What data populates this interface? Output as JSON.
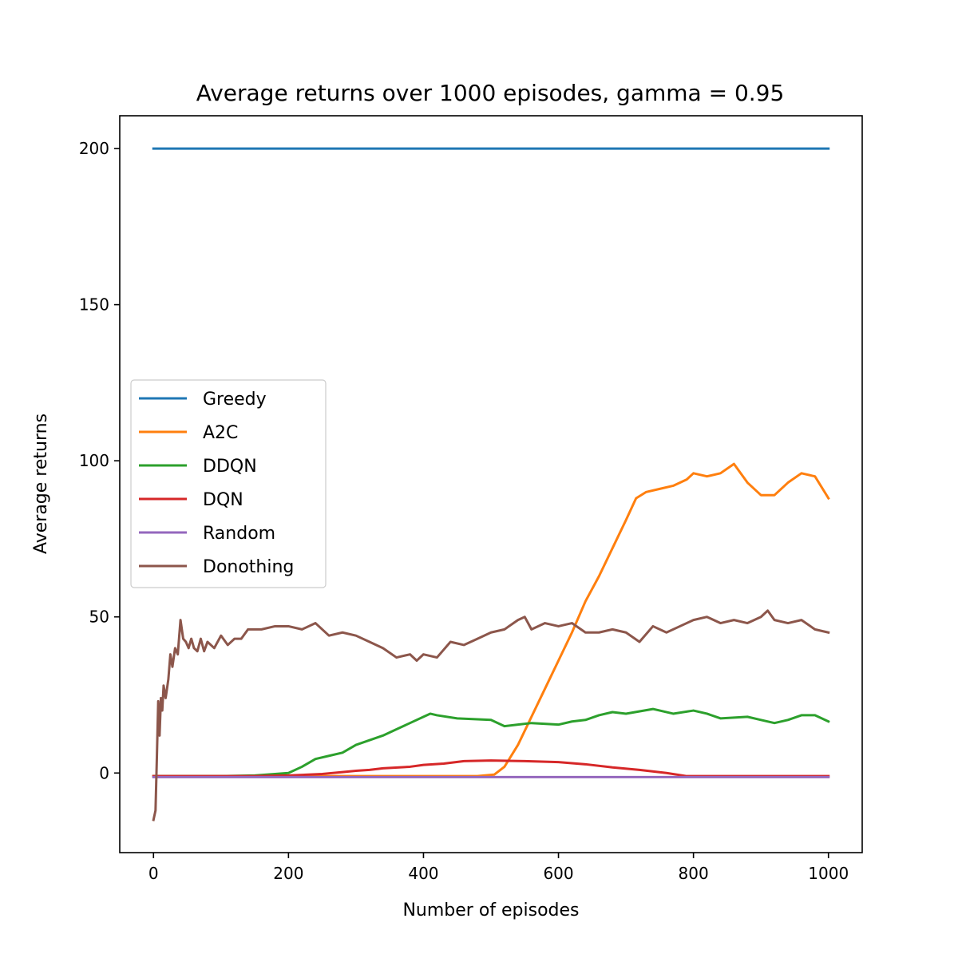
{
  "chart_data": {
    "type": "line",
    "title": "Average returns over 1000 episodes, gamma = 0.95",
    "xlabel": "Number of episodes",
    "ylabel": "Average returns",
    "xlim": [
      -50,
      1050
    ],
    "ylim": [
      -25.5,
      210.5
    ],
    "xticks": [
      0,
      200,
      400,
      600,
      800,
      1000
    ],
    "yticks": [
      0,
      50,
      100,
      150,
      200
    ],
    "xtick_labels": [
      "0",
      "200",
      "400",
      "600",
      "800",
      "1000"
    ],
    "ytick_labels": [
      "0",
      "50",
      "100",
      "150",
      "200"
    ],
    "grid": false,
    "legend_position": "center-left",
    "series": [
      {
        "name": "Greedy",
        "color": "#1f77b4",
        "points": [
          [
            0,
            200
          ],
          [
            1000,
            200
          ]
        ]
      },
      {
        "name": "A2C",
        "color": "#ff7f0e",
        "points": [
          [
            0,
            -1
          ],
          [
            100,
            -1
          ],
          [
            200,
            -1
          ],
          [
            300,
            -1
          ],
          [
            400,
            -1
          ],
          [
            480,
            -1
          ],
          [
            505,
            -0.5
          ],
          [
            520,
            2
          ],
          [
            540,
            9
          ],
          [
            560,
            18
          ],
          [
            580,
            27
          ],
          [
            600,
            36
          ],
          [
            620,
            45
          ],
          [
            640,
            55
          ],
          [
            660,
            63
          ],
          [
            680,
            72
          ],
          [
            700,
            81
          ],
          [
            715,
            88
          ],
          [
            730,
            90
          ],
          [
            750,
            91
          ],
          [
            770,
            92
          ],
          [
            790,
            94
          ],
          [
            800,
            96
          ],
          [
            820,
            95
          ],
          [
            840,
            96
          ],
          [
            860,
            99
          ],
          [
            880,
            93
          ],
          [
            900,
            89
          ],
          [
            920,
            89
          ],
          [
            940,
            93
          ],
          [
            960,
            96
          ],
          [
            980,
            95
          ],
          [
            1000,
            88
          ]
        ]
      },
      {
        "name": "DDQN",
        "color": "#2ca02c",
        "points": [
          [
            0,
            -1
          ],
          [
            100,
            -1
          ],
          [
            150,
            -0.8
          ],
          [
            200,
            0
          ],
          [
            220,
            2
          ],
          [
            240,
            4.5
          ],
          [
            260,
            5.5
          ],
          [
            280,
            6.5
          ],
          [
            300,
            9
          ],
          [
            320,
            10.5
          ],
          [
            340,
            12
          ],
          [
            360,
            14
          ],
          [
            380,
            16
          ],
          [
            400,
            18
          ],
          [
            410,
            19
          ],
          [
            420,
            18.5
          ],
          [
            450,
            17.5
          ],
          [
            500,
            17
          ],
          [
            520,
            15
          ],
          [
            540,
            15.5
          ],
          [
            560,
            16
          ],
          [
            600,
            15.5
          ],
          [
            620,
            16.5
          ],
          [
            640,
            17
          ],
          [
            660,
            18.5
          ],
          [
            680,
            19.5
          ],
          [
            700,
            19
          ],
          [
            740,
            20.5
          ],
          [
            770,
            19
          ],
          [
            800,
            20
          ],
          [
            820,
            19
          ],
          [
            840,
            17.5
          ],
          [
            880,
            18
          ],
          [
            900,
            17
          ],
          [
            920,
            16
          ],
          [
            940,
            17
          ],
          [
            960,
            18.5
          ],
          [
            980,
            18.5
          ],
          [
            1000,
            16.5
          ]
        ]
      },
      {
        "name": "DQN",
        "color": "#d62728",
        "points": [
          [
            0,
            -1
          ],
          [
            150,
            -1
          ],
          [
            200,
            -0.8
          ],
          [
            250,
            -0.3
          ],
          [
            280,
            0.3
          ],
          [
            300,
            0.7
          ],
          [
            320,
            1
          ],
          [
            340,
            1.5
          ],
          [
            380,
            2
          ],
          [
            400,
            2.6
          ],
          [
            430,
            3
          ],
          [
            460,
            3.8
          ],
          [
            500,
            4
          ],
          [
            550,
            3.8
          ],
          [
            600,
            3.5
          ],
          [
            640,
            2.8
          ],
          [
            680,
            1.8
          ],
          [
            720,
            1
          ],
          [
            760,
            0
          ],
          [
            790,
            -1
          ],
          [
            1000,
            -1
          ]
        ]
      },
      {
        "name": "Random",
        "color": "#9467bd",
        "points": [
          [
            0,
            -1.3
          ],
          [
            1000,
            -1.3
          ]
        ]
      },
      {
        "name": "Donothing",
        "color": "#8c564b",
        "points": [
          [
            0,
            -15
          ],
          [
            3,
            -12
          ],
          [
            5,
            5
          ],
          [
            7,
            23
          ],
          [
            9,
            12
          ],
          [
            11,
            24
          ],
          [
            13,
            20
          ],
          [
            15,
            28
          ],
          [
            18,
            24
          ],
          [
            22,
            30
          ],
          [
            25,
            38
          ],
          [
            28,
            34
          ],
          [
            32,
            40
          ],
          [
            36,
            38
          ],
          [
            40,
            49
          ],
          [
            44,
            43
          ],
          [
            48,
            42
          ],
          [
            52,
            40
          ],
          [
            56,
            43
          ],
          [
            60,
            40
          ],
          [
            65,
            39
          ],
          [
            70,
            43
          ],
          [
            75,
            39
          ],
          [
            80,
            42
          ],
          [
            90,
            40
          ],
          [
            100,
            44
          ],
          [
            110,
            41
          ],
          [
            120,
            43
          ],
          [
            130,
            43
          ],
          [
            140,
            46
          ],
          [
            160,
            46
          ],
          [
            180,
            47
          ],
          [
            200,
            47
          ],
          [
            220,
            46
          ],
          [
            240,
            48
          ],
          [
            260,
            44
          ],
          [
            280,
            45
          ],
          [
            300,
            44
          ],
          [
            320,
            42
          ],
          [
            340,
            40
          ],
          [
            360,
            37
          ],
          [
            380,
            38
          ],
          [
            390,
            36
          ],
          [
            400,
            38
          ],
          [
            420,
            37
          ],
          [
            440,
            42
          ],
          [
            460,
            41
          ],
          [
            480,
            43
          ],
          [
            500,
            45
          ],
          [
            520,
            46
          ],
          [
            540,
            49
          ],
          [
            550,
            50
          ],
          [
            560,
            46
          ],
          [
            580,
            48
          ],
          [
            600,
            47
          ],
          [
            620,
            48
          ],
          [
            640,
            45
          ],
          [
            660,
            45
          ],
          [
            680,
            46
          ],
          [
            700,
            45
          ],
          [
            720,
            42
          ],
          [
            740,
            47
          ],
          [
            760,
            45
          ],
          [
            780,
            47
          ],
          [
            800,
            49
          ],
          [
            820,
            50
          ],
          [
            840,
            48
          ],
          [
            860,
            49
          ],
          [
            880,
            48
          ],
          [
            900,
            50
          ],
          [
            910,
            52
          ],
          [
            920,
            49
          ],
          [
            940,
            48
          ],
          [
            960,
            49
          ],
          [
            980,
            46
          ],
          [
            1000,
            45
          ]
        ]
      }
    ]
  }
}
